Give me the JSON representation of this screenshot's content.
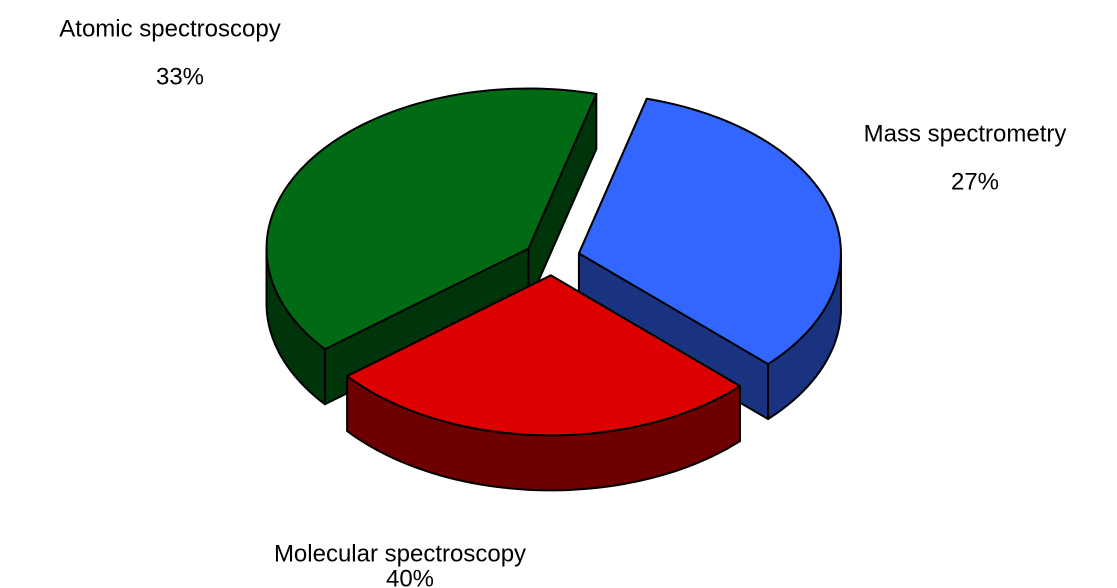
{
  "chart_data": {
    "type": "pie3d",
    "categories": [
      "Atomic spectroscopy",
      "Mass spectrometry",
      "Molecular spectroscopy"
    ],
    "values": [
      33,
      27,
      40
    ],
    "value_labels": [
      "33%",
      "27%",
      "40%"
    ],
    "colors": [
      "#3366ff",
      "#dd0000",
      "#006a14"
    ]
  }
}
